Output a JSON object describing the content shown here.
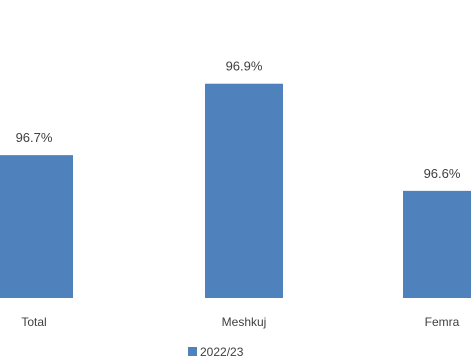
{
  "chart_data": {
    "type": "bar",
    "categories": [
      "Total",
      "Meshkuj",
      "Femra"
    ],
    "series": [
      {
        "name": "2022/23",
        "values": [
          96.7,
          96.9,
          96.6
        ],
        "data_labels": [
          "96.7%",
          "96.9%",
          "96.6%"
        ],
        "color": "#4F81BD"
      }
    ],
    "legend": "bottom-center",
    "grid": false,
    "y_axis_visible": false,
    "ylim": [
      96.3,
      97.0
    ]
  }
}
